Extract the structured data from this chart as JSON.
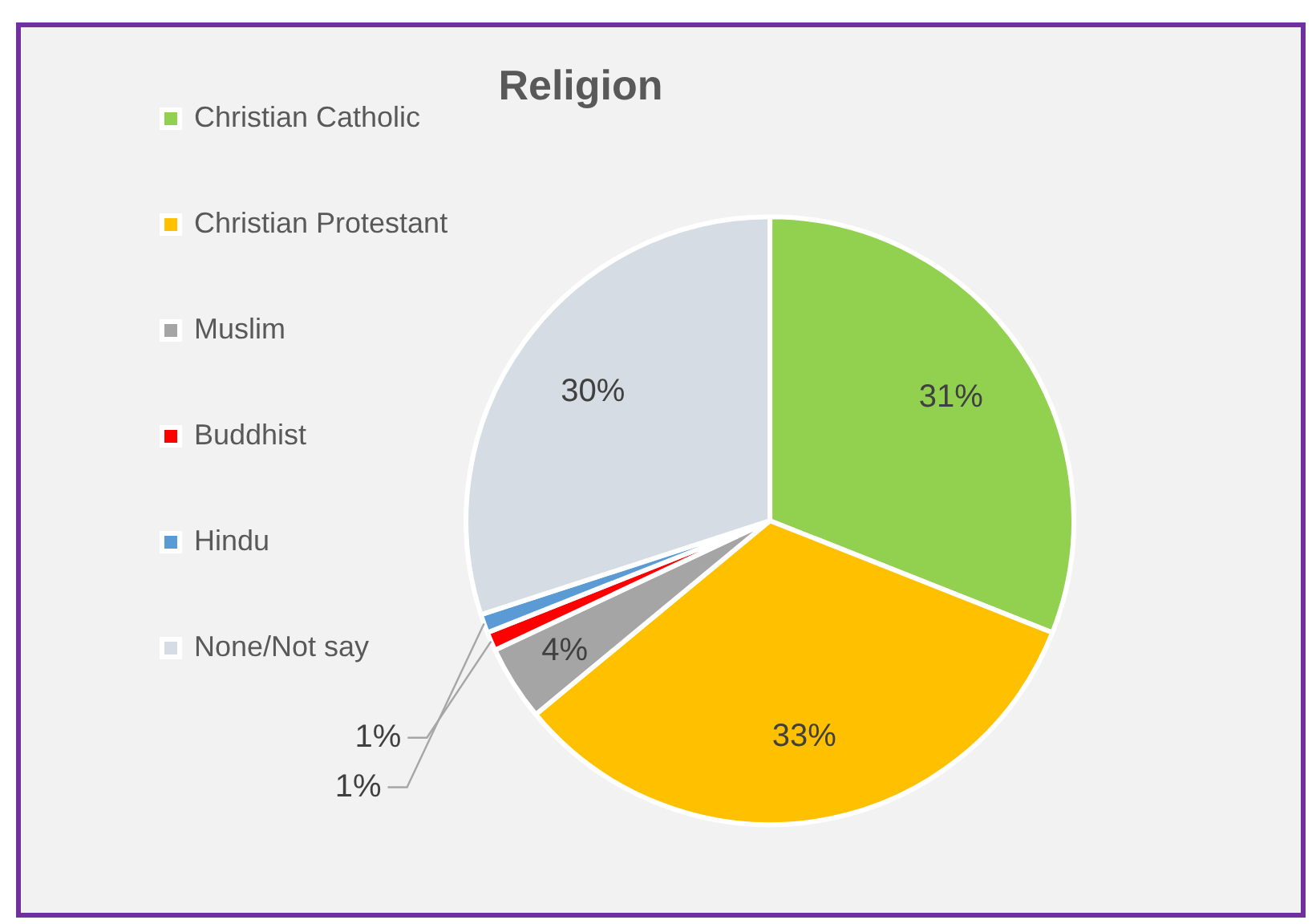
{
  "chart_data": {
    "type": "pie",
    "title": "Religion",
    "categories": [
      "Christian Catholic",
      "Christian Protestant",
      "Muslim",
      "Buddhist",
      "Hindu",
      "None/Not say"
    ],
    "values": [
      31,
      33,
      4,
      1,
      1,
      30
    ],
    "colors": [
      "#92d050",
      "#ffc000",
      "#a5a5a5",
      "#ff0000",
      "#5b9bd5",
      "#d6dce4"
    ],
    "value_labels": [
      "31%",
      "33%",
      "4%",
      "1%",
      "1%",
      "30%"
    ],
    "legend": "left"
  }
}
